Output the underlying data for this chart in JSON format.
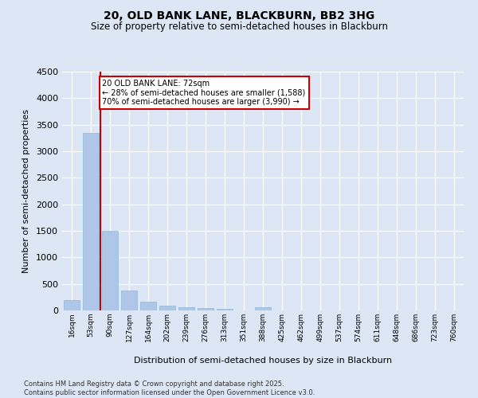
{
  "title1": "20, OLD BANK LANE, BLACKBURN, BB2 3HG",
  "title2": "Size of property relative to semi-detached houses in Blackburn",
  "xlabel": "Distribution of semi-detached houses by size in Blackburn",
  "ylabel": "Number of semi-detached properties",
  "categories": [
    "16sqm",
    "53sqm",
    "90sqm",
    "127sqm",
    "164sqm",
    "202sqm",
    "239sqm",
    "276sqm",
    "313sqm",
    "351sqm",
    "388sqm",
    "425sqm",
    "462sqm",
    "499sqm",
    "537sqm",
    "574sqm",
    "611sqm",
    "648sqm",
    "686sqm",
    "723sqm",
    "760sqm"
  ],
  "values": [
    200,
    3350,
    1500,
    370,
    170,
    90,
    55,
    45,
    30,
    0,
    60,
    0,
    0,
    0,
    0,
    0,
    0,
    0,
    0,
    0,
    0
  ],
  "bar_color": "#aec6e8",
  "bar_edge_color": "#8fb8d8",
  "vline_color": "#cc0000",
  "property_label": "20 OLD BANK LANE: 72sqm",
  "annotation_smaller": "← 28% of semi-detached houses are smaller (1,588)",
  "annotation_larger": "70% of semi-detached houses are larger (3,990) →",
  "ylim": [
    0,
    4500
  ],
  "yticks": [
    0,
    500,
    1000,
    1500,
    2000,
    2500,
    3000,
    3500,
    4000,
    4500
  ],
  "background_color": "#dce6f5",
  "plot_bg_color": "#dce6f5",
  "grid_color": "#ffffff",
  "footnote1": "Contains HM Land Registry data © Crown copyright and database right 2025.",
  "footnote2": "Contains public sector information licensed under the Open Government Licence v3.0."
}
